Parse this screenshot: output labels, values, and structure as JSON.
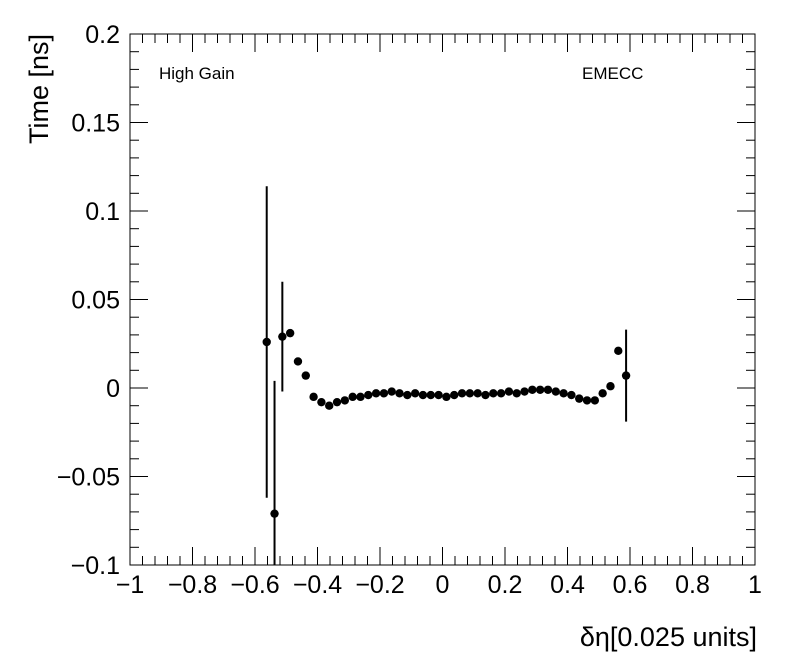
{
  "chart_data": {
    "type": "scatter",
    "title": "",
    "xlabel": "δη[0.025 units]",
    "ylabel": "Time [ns]",
    "xlim": [
      -1,
      1
    ],
    "ylim": [
      -0.1,
      0.2
    ],
    "x_ticks": [
      "−1",
      "−0.8",
      "−0.6",
      "−0.4",
      "−0.2",
      "0",
      "0.2",
      "0.4",
      "0.6",
      "0.8",
      "1"
    ],
    "y_ticks": [
      "−0.1",
      "−0.05",
      "0",
      "0.05",
      "0.1",
      "0.15",
      "0.2"
    ],
    "annotations": {
      "left": "High Gain",
      "right": "EMECC"
    },
    "grid": false,
    "marker_color": "#000000",
    "points": [
      {
        "x": -0.5625,
        "y": 0.026,
        "err": 0.088
      },
      {
        "x": -0.5375,
        "y": -0.071,
        "err": 0.075
      },
      {
        "x": -0.5125,
        "y": 0.029,
        "err": 0.031
      },
      {
        "x": -0.4875,
        "y": 0.031,
        "err": 0
      },
      {
        "x": -0.4625,
        "y": 0.015,
        "err": 0
      },
      {
        "x": -0.4375,
        "y": 0.007,
        "err": 0
      },
      {
        "x": -0.4125,
        "y": -0.005,
        "err": 0
      },
      {
        "x": -0.3875,
        "y": -0.008,
        "err": 0
      },
      {
        "x": -0.3625,
        "y": -0.01,
        "err": 0
      },
      {
        "x": -0.3375,
        "y": -0.008,
        "err": 0
      },
      {
        "x": -0.3125,
        "y": -0.007,
        "err": 0
      },
      {
        "x": -0.2875,
        "y": -0.005,
        "err": 0
      },
      {
        "x": -0.2625,
        "y": -0.005,
        "err": 0
      },
      {
        "x": -0.2375,
        "y": -0.004,
        "err": 0
      },
      {
        "x": -0.2125,
        "y": -0.003,
        "err": 0
      },
      {
        "x": -0.1875,
        "y": -0.003,
        "err": 0
      },
      {
        "x": -0.1625,
        "y": -0.002,
        "err": 0
      },
      {
        "x": -0.1375,
        "y": -0.003,
        "err": 0
      },
      {
        "x": -0.1125,
        "y": -0.004,
        "err": 0
      },
      {
        "x": -0.0875,
        "y": -0.003,
        "err": 0
      },
      {
        "x": -0.0625,
        "y": -0.004,
        "err": 0
      },
      {
        "x": -0.0375,
        "y": -0.004,
        "err": 0
      },
      {
        "x": -0.0125,
        "y": -0.004,
        "err": 0
      },
      {
        "x": 0.0125,
        "y": -0.005,
        "err": 0
      },
      {
        "x": 0.0375,
        "y": -0.004,
        "err": 0
      },
      {
        "x": 0.0625,
        "y": -0.003,
        "err": 0
      },
      {
        "x": 0.0875,
        "y": -0.003,
        "err": 0
      },
      {
        "x": 0.1125,
        "y": -0.003,
        "err": 0
      },
      {
        "x": 0.1375,
        "y": -0.004,
        "err": 0
      },
      {
        "x": 0.1625,
        "y": -0.003,
        "err": 0
      },
      {
        "x": 0.1875,
        "y": -0.003,
        "err": 0
      },
      {
        "x": 0.2125,
        "y": -0.002,
        "err": 0
      },
      {
        "x": 0.2375,
        "y": -0.003,
        "err": 0
      },
      {
        "x": 0.2625,
        "y": -0.002,
        "err": 0
      },
      {
        "x": 0.2875,
        "y": -0.001,
        "err": 0
      },
      {
        "x": 0.3125,
        "y": -0.001,
        "err": 0
      },
      {
        "x": 0.3375,
        "y": -0.001,
        "err": 0
      },
      {
        "x": 0.3625,
        "y": -0.002,
        "err": 0
      },
      {
        "x": 0.3875,
        "y": -0.003,
        "err": 0
      },
      {
        "x": 0.4125,
        "y": -0.004,
        "err": 0
      },
      {
        "x": 0.4375,
        "y": -0.006,
        "err": 0
      },
      {
        "x": 0.4625,
        "y": -0.007,
        "err": 0
      },
      {
        "x": 0.4875,
        "y": -0.007,
        "err": 0
      },
      {
        "x": 0.5125,
        "y": -0.003,
        "err": 0
      },
      {
        "x": 0.5375,
        "y": 0.001,
        "err": 0
      },
      {
        "x": 0.5625,
        "y": 0.021,
        "err": 0
      },
      {
        "x": 0.5875,
        "y": 0.007,
        "err": 0.026
      }
    ]
  }
}
